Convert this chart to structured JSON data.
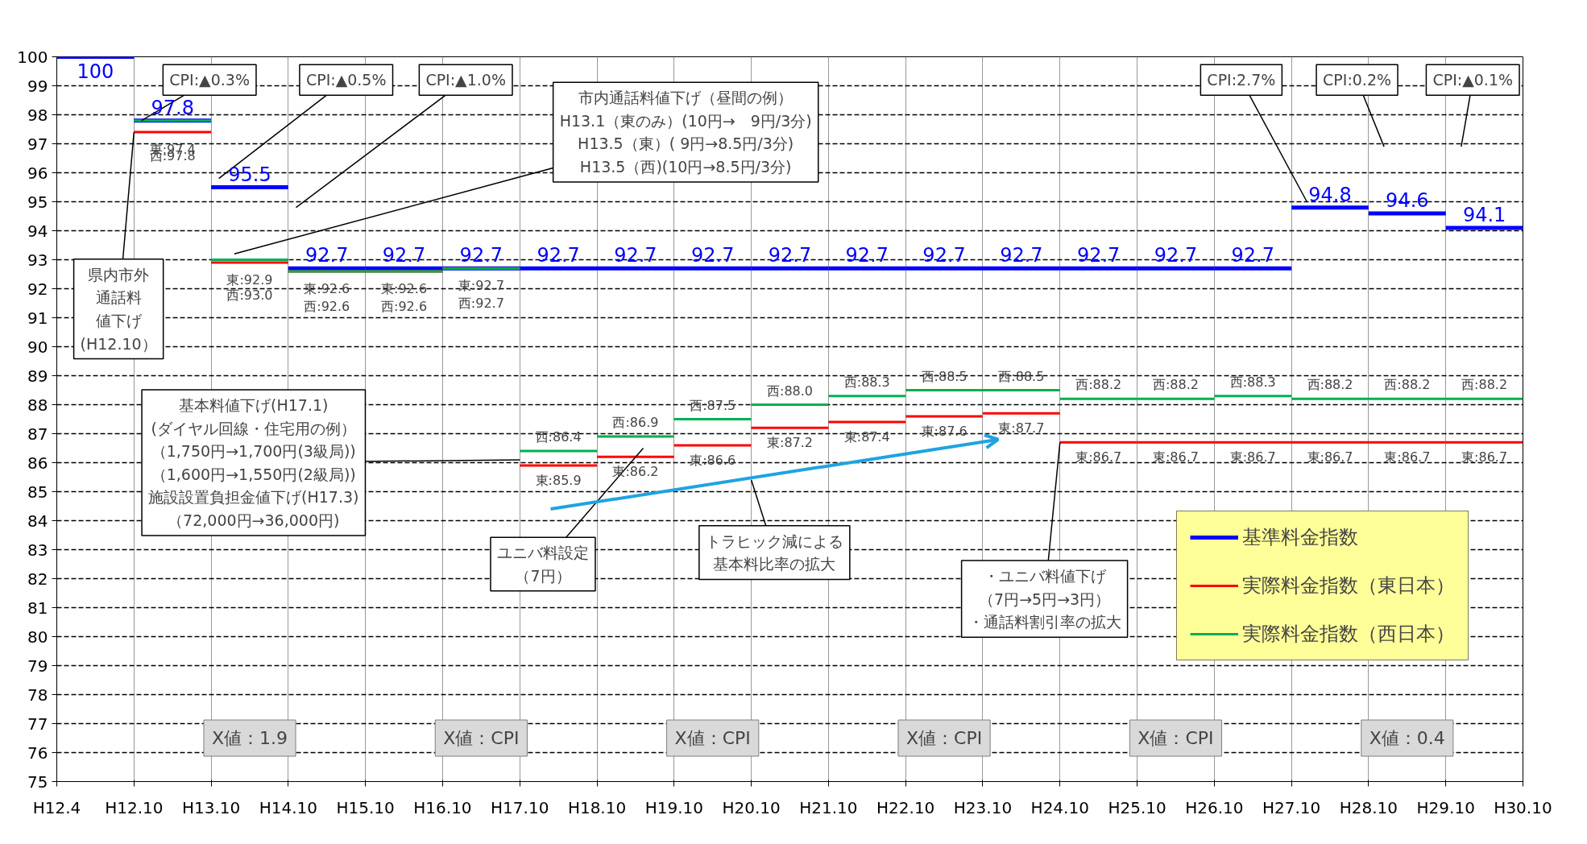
{
  "chart_data": {
    "type": "step",
    "categories": [
      "H12.4",
      "H12.10",
      "H13.10",
      "H14.10",
      "H15.10",
      "H16.10",
      "H17.10",
      "H18.10",
      "H19.10",
      "H20.10",
      "H21.10",
      "H22.10",
      "H23.10",
      "H24.10",
      "H25.10",
      "H26.10",
      "H27.10",
      "H28.10",
      "H29.10",
      "H30.10"
    ],
    "ylim": [
      75,
      100
    ],
    "yticks": [
      75,
      76,
      77,
      78,
      79,
      80,
      81,
      82,
      83,
      84,
      85,
      86,
      87,
      88,
      89,
      90,
      91,
      92,
      93,
      94,
      95,
      96,
      97,
      98,
      99,
      100
    ],
    "grid": true,
    "legend": "bottom right",
    "series": [
      {
        "name": "基準料金指数",
        "color": "#0000ff",
        "values": [
          100,
          97.8,
          95.5,
          92.7,
          92.7,
          92.7,
          92.7,
          92.7,
          92.7,
          92.7,
          92.7,
          92.7,
          92.7,
          92.7,
          92.7,
          92.7,
          94.8,
          94.6,
          94.1,
          94.1
        ],
        "value_labels": [
          "100",
          "97.8",
          "95.5",
          "92.7",
          "92.7",
          "92.7",
          "92.7",
          "92.7",
          "92.7",
          "92.7",
          "92.7",
          "92.7",
          "92.7",
          "92.7",
          "92.7",
          "92.7",
          "94.8",
          "94.6",
          "94.1",
          null
        ]
      },
      {
        "name": "実際料金指数（東日本）",
        "color": "#ff0000",
        "values": [
          null,
          97.4,
          92.9,
          92.6,
          92.6,
          92.7,
          85.9,
          86.2,
          86.6,
          87.2,
          87.4,
          87.6,
          87.7,
          86.7,
          86.7,
          86.7,
          86.7,
          86.7,
          86.7,
          86.7
        ],
        "value_labels": [
          null,
          "東:97.4",
          "東:92.9",
          "東:92.6",
          "東:92.6",
          "東:92.7",
          "東:85.9",
          "東:86.2",
          "東:86.6",
          "東:87.2",
          "東:87.4",
          "東:87.6",
          "東:87.7",
          "東:86.7",
          "東:86.7",
          "東:86.7",
          "東:86.7",
          "東:86.7",
          "東:86.7",
          null
        ]
      },
      {
        "name": "実際料金指数（西日本）",
        "color": "#00b050",
        "values": [
          null,
          97.8,
          93.0,
          92.6,
          92.6,
          92.7,
          86.4,
          86.9,
          87.5,
          88.0,
          88.3,
          88.5,
          88.5,
          88.2,
          88.2,
          88.3,
          88.2,
          88.2,
          88.2,
          88.2
        ],
        "value_labels": [
          null,
          "西:97.8",
          "西:93.0",
          "西:92.6",
          "西:92.6",
          "西:92.7",
          "西:86.4",
          "西:86.9",
          "西:87.5",
          "西:88.0",
          "西:88.3",
          "西:88.5",
          "西:88.5",
          "西:88.2",
          "西:88.2",
          "西:88.3",
          "西:88.2",
          "西:88.2",
          "西:88.2",
          null
        ]
      }
    ],
    "annotations": [
      {
        "text": "CPI:▲0.3%",
        "y": 97.8
      },
      "CPI:▲0.5%",
      "CPI:▲1.0%",
      "市内通話料値下げ（昼間の例）\nH13.1（東のみ）(10円→　9円/3分)\nH13.5（東）( 9円→8.5円/3分)\nH13.5（西)(10円→8.5円/3分)",
      {
        "text": "県内市外通話料値下げ(H12.10）",
        "x": "H12.10",
        "y": 97.4
      },
      "基本料値下げ(H17.1)(ダイヤル回線・住宅用の例）（1,750円→1,700円(3級局))（1,600円→1,550円(2級局))施設設置負担金値下げ(H17.3)（72,000円→36,000円)",
      "ユニバ料設定（7円）",
      "トラヒック減による基本料比率の拡大",
      {
        "text": "・ユニバ料値下げ（7円→5円→3円）・通話料割引率の拡大",
        "x": "H24.10",
        "y": 86.7
      },
      "CPI:2.7%",
      "CPI:0.2%",
      "CPI:▲0.1%",
      "X値：1.9",
      "X値：CPI",
      "X値：CPI",
      "X値：CPI",
      "X値：CPI",
      "X値：0.4"
    ]
  }
}
